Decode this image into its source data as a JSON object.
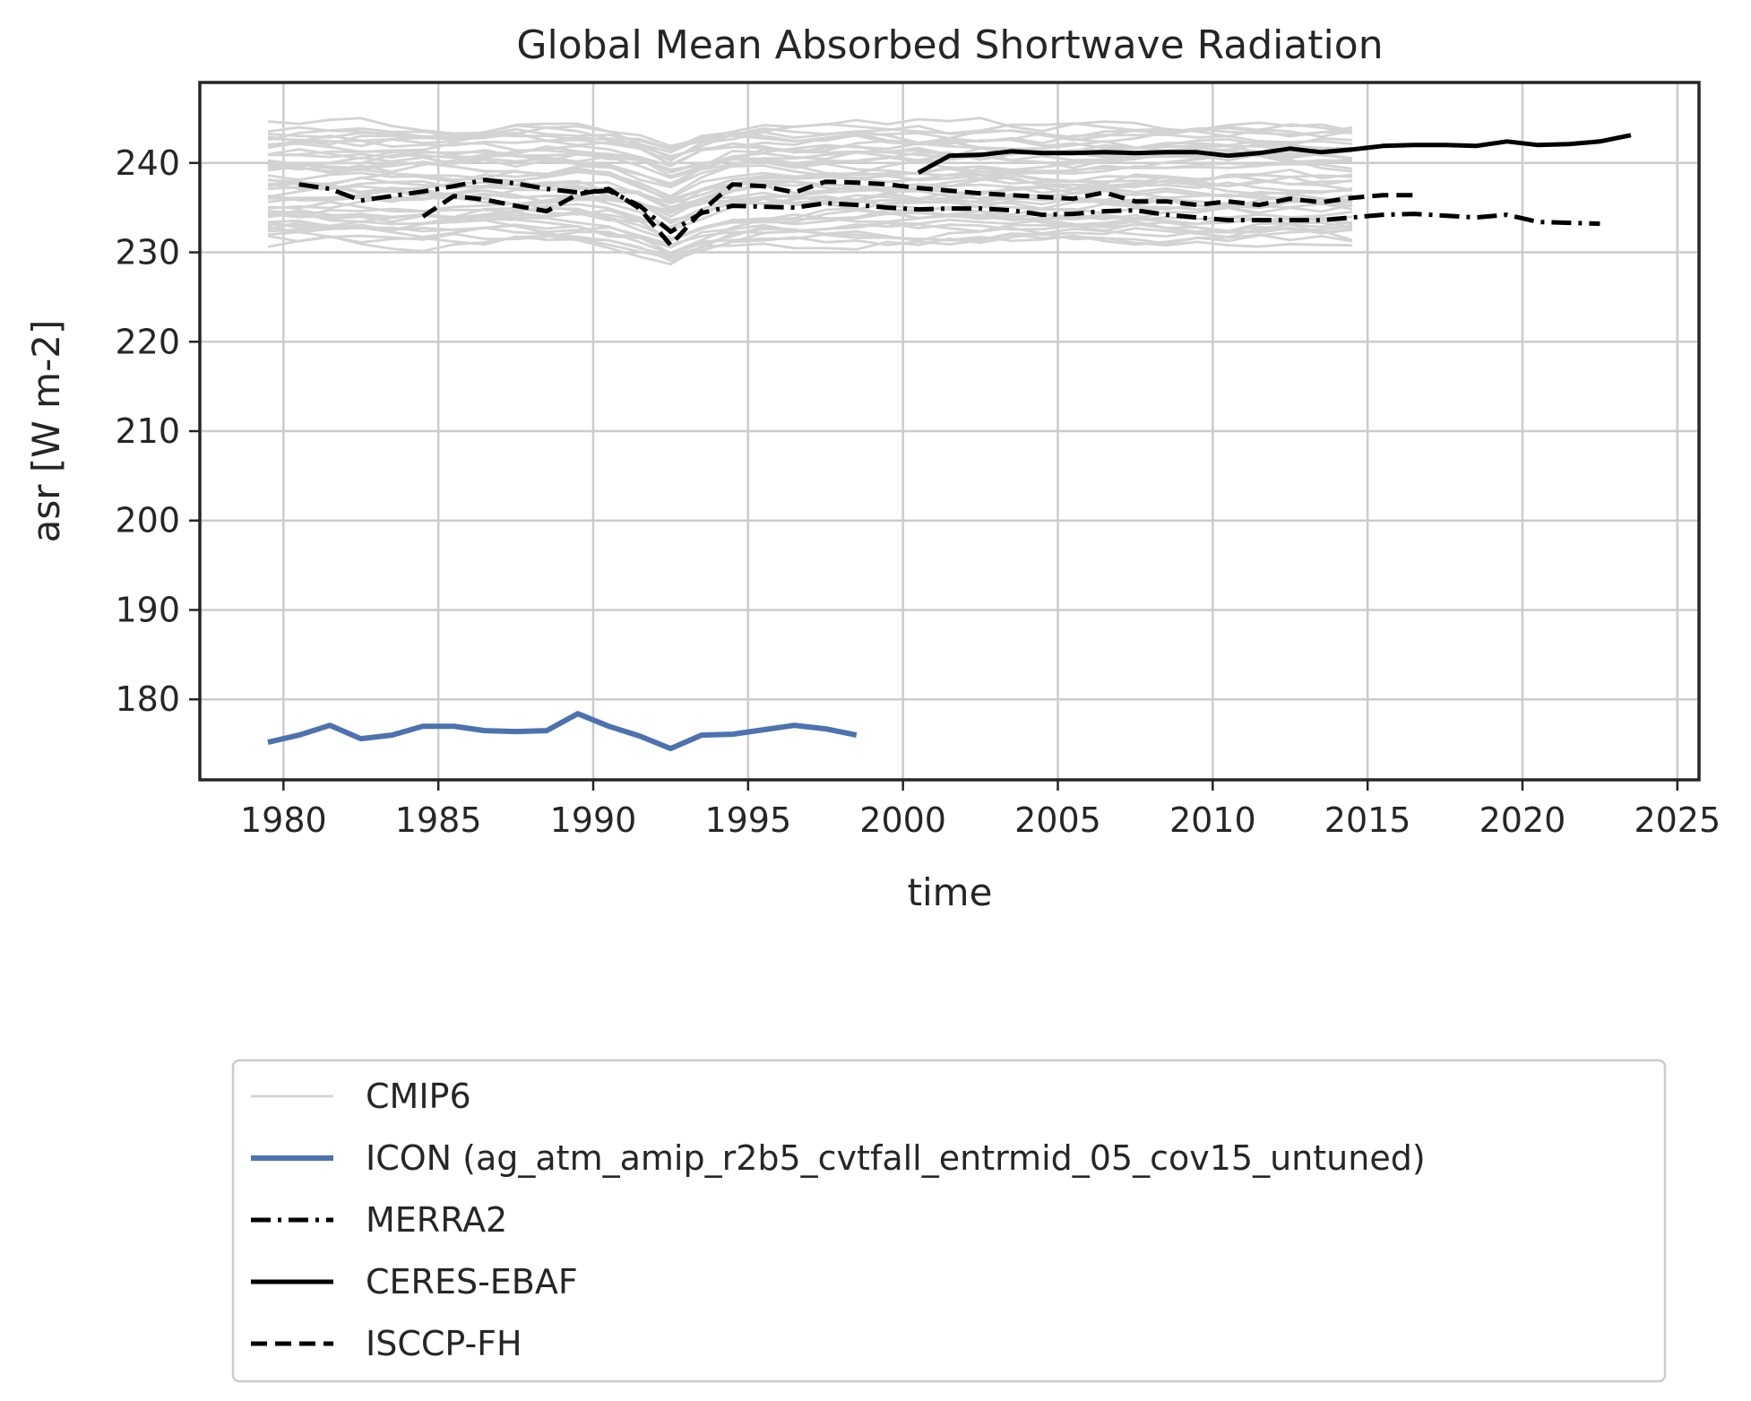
{
  "chart_data": {
    "type": "line",
    "title": "Global Mean Absorbed Shortwave Radiation",
    "xlabel": "time",
    "ylabel": "asr [W m-2]",
    "xlim": [
      1977.3,
      2025.7
    ],
    "ylim": [
      171,
      249
    ],
    "xticks": [
      1980,
      1985,
      1990,
      1995,
      2000,
      2005,
      2010,
      2015,
      2020,
      2025
    ],
    "yticks": [
      180,
      190,
      200,
      210,
      220,
      230,
      240
    ],
    "grid": true,
    "legend_position": "below",
    "ensemble": {
      "name": "CMIP6",
      "color": "#d3d3d3",
      "x_start": 1979.5,
      "x_end": 2014.5,
      "members": 46,
      "range": [
        230,
        245.5
      ]
    },
    "series": [
      {
        "name": "ICON (ag_atm_amip_r2b5_cvtfall_entrmid_05_cov15_untuned)",
        "color": "#4c72b0",
        "style": "solid",
        "x": [
          1979.5,
          1980.5,
          1981.5,
          1982.5,
          1983.5,
          1984.5,
          1985.5,
          1986.5,
          1987.5,
          1988.5,
          1989.5,
          1990.5,
          1991.5,
          1992.5,
          1993.5,
          1994.5,
          1995.5,
          1996.5,
          1997.5,
          1998.5
        ],
        "y": [
          175.2,
          176.0,
          177.1,
          175.6,
          176.0,
          177.0,
          177.0,
          176.5,
          176.4,
          176.5,
          178.4,
          177.0,
          175.9,
          174.5,
          176.0,
          176.1,
          176.6,
          177.1,
          176.7,
          176.0
        ]
      },
      {
        "name": "MERRA2",
        "color": "#000000",
        "style": "dashdot",
        "x": [
          1980.5,
          1981.5,
          1982.5,
          1983.5,
          1984.5,
          1985.5,
          1986.5,
          1987.5,
          1988.5,
          1989.5,
          1990.5,
          1991.5,
          1992.5,
          1993.5,
          1994.5,
          1995.5,
          1996.5,
          1997.5,
          1998.5,
          1999.5,
          2000.5,
          2001.5,
          2002.5,
          2003.5,
          2004.5,
          2005.5,
          2006.5,
          2007.5,
          2008.5,
          2009.5,
          2010.5,
          2011.5,
          2012.5,
          2013.5,
          2014.5,
          2015.5,
          2016.5,
          2017.5,
          2018.5,
          2019.5,
          2020.5,
          2021.5,
          2022.5
        ],
        "y": [
          237.6,
          237.1,
          235.8,
          236.3,
          236.8,
          237.4,
          238.1,
          237.7,
          237.1,
          236.7,
          236.9,
          235.2,
          232.3,
          234.4,
          235.2,
          235.1,
          235.0,
          235.5,
          235.3,
          235.0,
          234.8,
          234.9,
          234.9,
          234.7,
          234.2,
          234.3,
          234.6,
          234.7,
          234.2,
          233.9,
          233.6,
          233.6,
          233.6,
          233.6,
          233.9,
          234.2,
          234.3,
          234.1,
          233.9,
          234.2,
          233.4,
          233.3,
          233.2
        ]
      },
      {
        "name": "CERES-EBAF",
        "color": "#000000",
        "style": "solid",
        "x": [
          2000.5,
          2001.5,
          2002.5,
          2003.5,
          2004.5,
          2005.5,
          2006.5,
          2007.5,
          2008.5,
          2009.5,
          2010.5,
          2011.5,
          2012.5,
          2013.5,
          2014.5,
          2015.5,
          2016.5,
          2017.5,
          2018.5,
          2019.5,
          2020.5,
          2021.5,
          2022.5,
          2023.5
        ],
        "y": [
          238.9,
          240.8,
          240.9,
          241.3,
          241.1,
          241.1,
          241.2,
          241.1,
          241.2,
          241.2,
          240.8,
          241.1,
          241.6,
          241.2,
          241.5,
          241.9,
          242.0,
          242.0,
          241.9,
          242.4,
          242.0,
          242.1,
          242.4,
          243.1
        ]
      },
      {
        "name": "ISCCP-FH",
        "color": "#000000",
        "style": "dashed",
        "x": [
          1984.5,
          1985.5,
          1986.5,
          1987.5,
          1988.5,
          1989.5,
          1990.5,
          1991.5,
          1992.5,
          1993.5,
          1994.5,
          1995.5,
          1996.5,
          1997.5,
          1998.5,
          1999.5,
          2000.5,
          2001.5,
          2002.5,
          2003.5,
          2004.5,
          2005.5,
          2006.5,
          2007.5,
          2008.5,
          2009.5,
          2010.5,
          2011.5,
          2012.5,
          2013.5,
          2014.5,
          2015.5,
          2016.5
        ],
        "y": [
          234.0,
          236.3,
          235.9,
          235.2,
          234.6,
          236.5,
          237.1,
          234.9,
          230.8,
          234.6,
          237.6,
          237.4,
          236.7,
          237.9,
          237.8,
          237.6,
          237.2,
          236.9,
          236.6,
          236.4,
          236.2,
          236.0,
          236.7,
          235.7,
          235.7,
          235.3,
          235.7,
          235.3,
          236.0,
          235.6,
          236.1,
          236.4,
          236.4
        ]
      }
    ]
  }
}
